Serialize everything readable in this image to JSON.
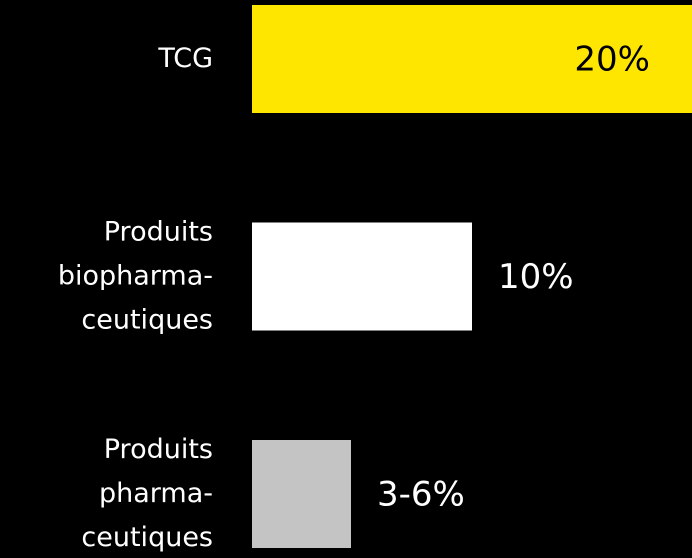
{
  "chart_data": {
    "type": "bar",
    "orientation": "horizontal",
    "categories": [
      [
        "TCG"
      ],
      [
        "Produits",
        "biopharma-",
        "ceutiques"
      ],
      [
        "Produits",
        "pharma-",
        "ceutiques"
      ]
    ],
    "values": [
      20,
      10,
      4.5
    ],
    "value_labels": [
      "20%",
      "10%",
      "3-6%"
    ],
    "colors": [
      "#ffe600",
      "#ffffff",
      "#c4c4c4"
    ]
  }
}
